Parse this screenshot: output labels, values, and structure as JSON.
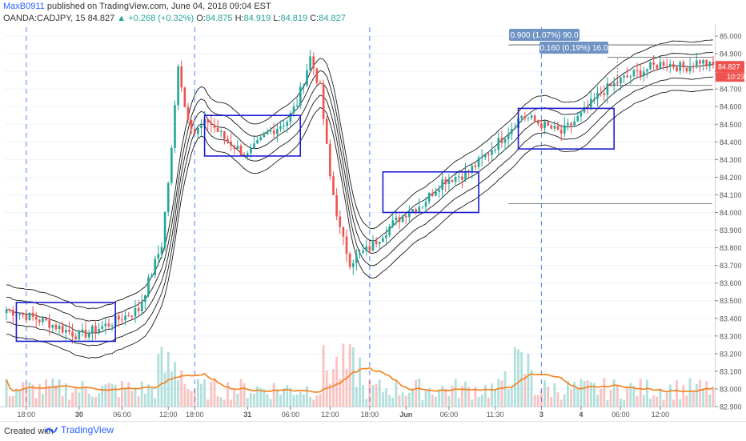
{
  "header": {
    "author": "MaxB0911",
    "published": "published on TradingView.com, June 04, 2018 09:04 EST",
    "symbol": "OANDA:CADJPY, 15",
    "last": "84.827",
    "change": "▲ +0.268 (+0.32%)",
    "o_label": "O:",
    "o": "84.875",
    "h_label": "H:",
    "h": "84.919",
    "l_label": "L:",
    "l": "84.819",
    "c_label": "C:",
    "c": "84.827"
  },
  "footer": {
    "created_with": "Created with",
    "brand": "TradingView"
  },
  "colors": {
    "up": "#26a69a",
    "down": "#ef5350",
    "box": "#1c1cd1",
    "envelope": "#1a1a1a",
    "volume_ma": "#f57f17",
    "session_line": "#2962ff",
    "measure_label": "#6f93c4",
    "price_tag": "#ef5350"
  },
  "chart_data": {
    "type": "candlestick",
    "symbol": "OANDA:CADJPY",
    "interval": "15",
    "ylim": [
      82.9,
      85.05
    ],
    "y_ticks": [
      "85.000",
      "84.900",
      "84.800",
      "84.700",
      "84.600",
      "84.500",
      "84.400",
      "84.300",
      "84.200",
      "84.100",
      "84.000",
      "83.900",
      "83.800",
      "83.700",
      "83.600",
      "83.500",
      "83.400",
      "83.300",
      "83.200",
      "83.100",
      "83.000",
      "82.900"
    ],
    "x_ticks": [
      "18:00",
      "30",
      "06:00",
      "12:00",
      "18:00",
      "31",
      "06:00",
      "12:00",
      "18:00",
      "Jun",
      "06:00",
      "11:30",
      "3",
      "4",
      "06:00",
      "12:00"
    ],
    "session_dividers": [
      "30",
      "31",
      "Jun",
      "3"
    ],
    "price_line": {
      "value": "84.827",
      "countdown": "10:23"
    },
    "key_path": [
      [
        0,
        83.45
      ],
      [
        12,
        83.38
      ],
      [
        22,
        83.3
      ],
      [
        30,
        83.36
      ],
      [
        40,
        83.45
      ],
      [
        47,
        83.82
      ],
      [
        50,
        84.35
      ],
      [
        52,
        84.85
      ],
      [
        54,
        84.6
      ],
      [
        57,
        84.45
      ],
      [
        61,
        84.52
      ],
      [
        66,
        84.42
      ],
      [
        73,
        84.32
      ],
      [
        79,
        84.45
      ],
      [
        85,
        84.52
      ],
      [
        88,
        84.62
      ],
      [
        92,
        84.88
      ],
      [
        95,
        84.7
      ],
      [
        98,
        84.2
      ],
      [
        101,
        83.9
      ],
      [
        104,
        83.72
      ],
      [
        110,
        83.8
      ],
      [
        116,
        83.92
      ],
      [
        121,
        84.0
      ],
      [
        126,
        84.05
      ],
      [
        132,
        84.18
      ],
      [
        139,
        84.22
      ],
      [
        144,
        84.3
      ],
      [
        150,
        84.42
      ],
      [
        156,
        84.55
      ],
      [
        162,
        84.5
      ],
      [
        168,
        84.45
      ],
      [
        174,
        84.55
      ],
      [
        180,
        84.68
      ],
      [
        186,
        84.75
      ],
      [
        192,
        84.8
      ],
      [
        199,
        84.85
      ],
      [
        205,
        84.82
      ],
      [
        210,
        84.86
      ],
      [
        213,
        84.83
      ]
    ],
    "boxes": [
      {
        "x0": 3,
        "x1": 33,
        "y0": 83.27,
        "y1": 83.49
      },
      {
        "x0": 60,
        "x1": 89,
        "y0": 84.32,
        "y1": 84.55
      },
      {
        "x0": 114,
        "x1": 143,
        "y0": 84.0,
        "y1": 84.23
      },
      {
        "x0": 155,
        "x1": 184,
        "y0": 84.36,
        "y1": 84.59
      }
    ],
    "measurements": [
      {
        "label": "0.900 (1.07%) 90.0",
        "from": 84.05,
        "to": 84.95
      },
      {
        "label": "0.160 (0.19%) 16.0",
        "from": 84.72,
        "to": 84.88
      }
    ]
  }
}
